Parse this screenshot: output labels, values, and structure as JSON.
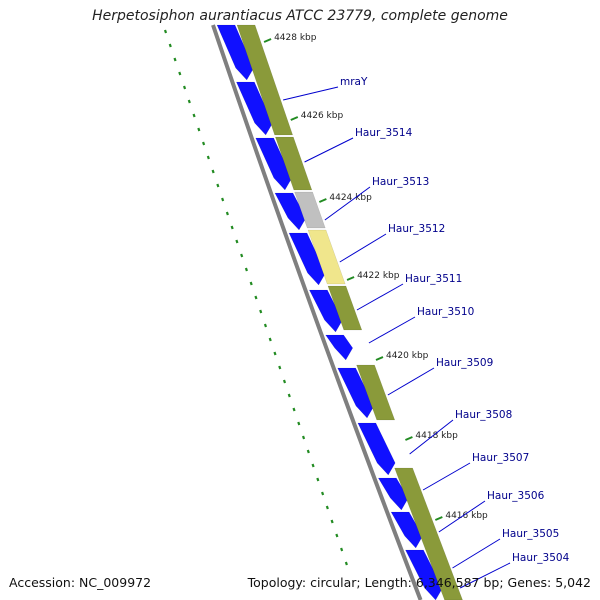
{
  "title": "Herpetosiphon aurantiacus ATCC 23779, complete genome",
  "accession": "Accession: NC_009972",
  "summary": "Topology: circular; Length: 6,346,587 bp; Genes: 5,042",
  "colors": {
    "cds_forward": "#8a9a3a",
    "cds_reverse": "#1010ff",
    "rna_gray": "#c0c0c0",
    "rna_yellow": "#f0e68c",
    "backbone": "#7f7f7f",
    "tick": "#228b22",
    "label_line": "#0000cd",
    "label_text": "#00008b",
    "gc_skew_dots": "#228b22"
  },
  "scale": {
    "unit": "kbp",
    "ticks": [
      {
        "kbp": 4428,
        "label": "4428 kbp"
      },
      {
        "kbp": 4426,
        "label": "4426 kbp"
      },
      {
        "kbp": 4424,
        "label": "4424 kbp"
      },
      {
        "kbp": 4422,
        "label": "4422 kbp"
      },
      {
        "kbp": 4420,
        "label": "4420 kbp"
      },
      {
        "kbp": 4418,
        "label": "4418 kbp"
      },
      {
        "kbp": 4416,
        "label": "4416 kbp"
      }
    ]
  },
  "genes": [
    {
      "label": "mraY"
    },
    {
      "label": "Haur_3514"
    },
    {
      "label": "Haur_3513"
    },
    {
      "label": "Haur_3512"
    },
    {
      "label": "Haur_3511"
    },
    {
      "label": "Haur_3510"
    },
    {
      "label": "Haur_3509"
    },
    {
      "label": "Haur_3508"
    },
    {
      "label": "Haur_3507"
    },
    {
      "label": "Haur_3506"
    },
    {
      "label": "Haur_3505"
    },
    {
      "label": "Haur_3504"
    }
  ]
}
